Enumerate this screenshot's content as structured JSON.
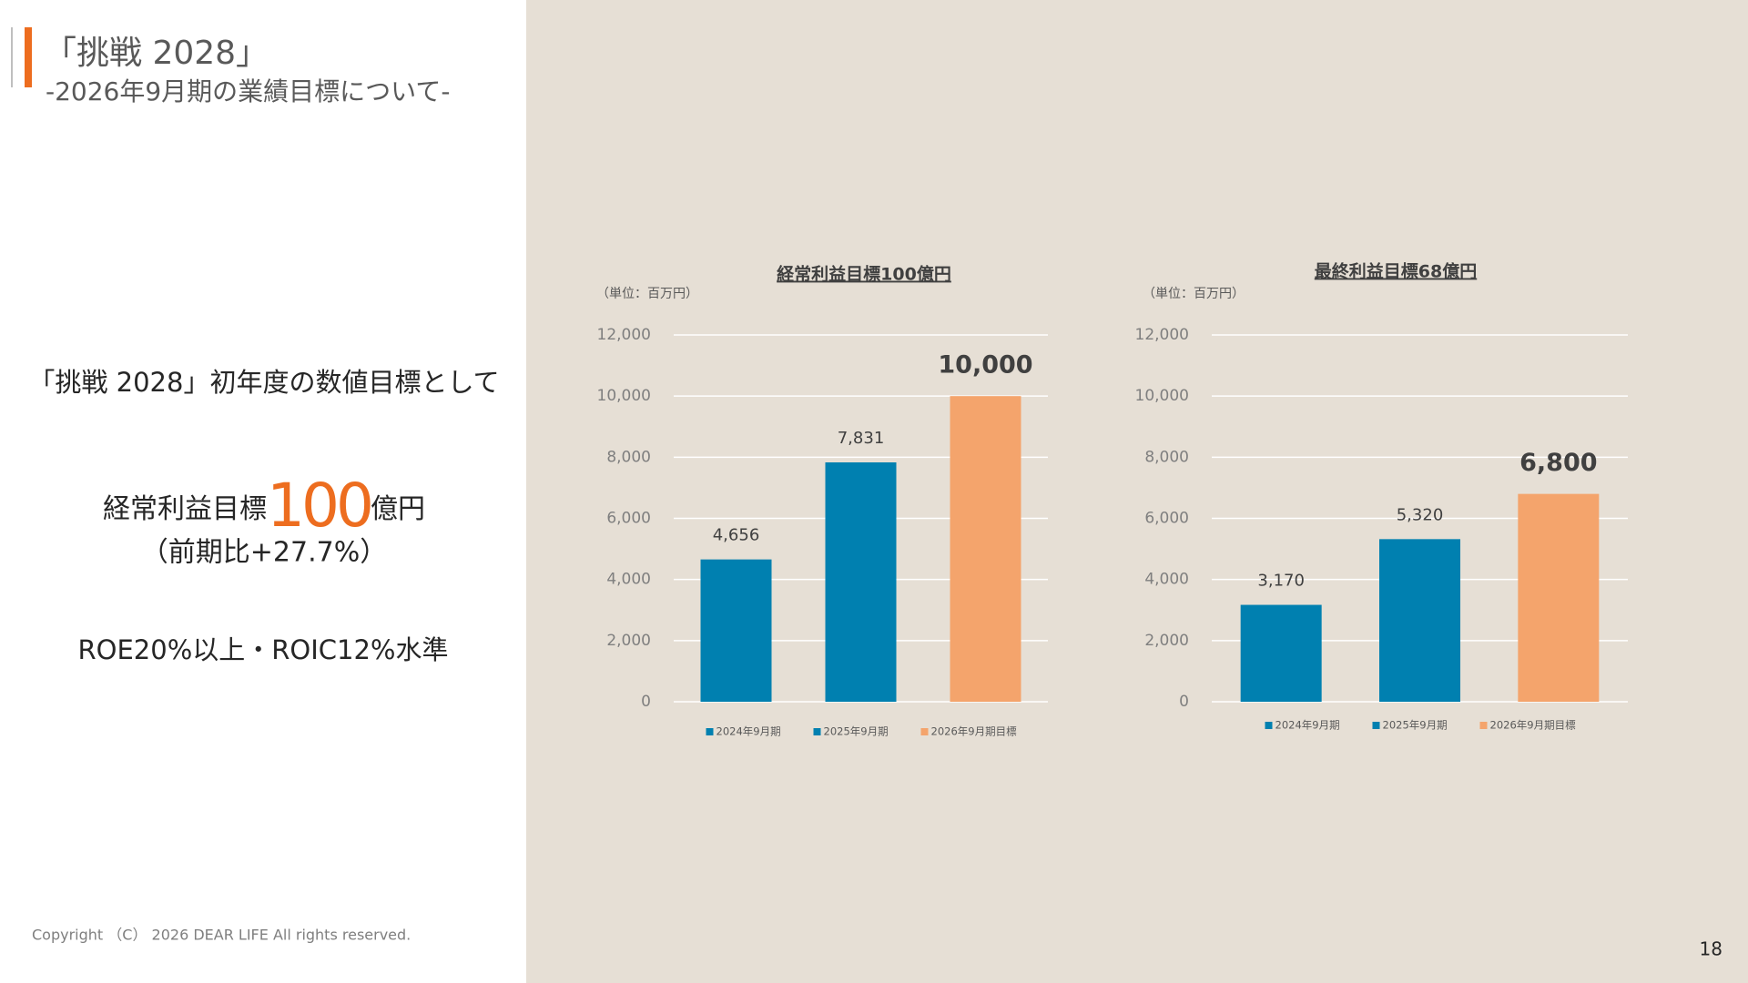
{
  "header": {
    "title": "「挑戦 2028」",
    "subtitle": "-2026年9月期の業績目標について-"
  },
  "summary": {
    "intro": "「挑戦 2028」初年度の数値目標として",
    "target_label": "経常利益目標",
    "target_value": "100",
    "target_unit": "億円",
    "comparison": "（前期比+27.7%）",
    "ratios": "ROE20%以上・ROIC12%水準"
  },
  "footer": {
    "copyright": "Copyright （C） 2026 DEAR LIFE All rights reserved.",
    "page": "18"
  },
  "chart_data": [
    {
      "type": "bar",
      "title": "経常利益目標100億円",
      "unit_label": "（単位：百万円）",
      "categories": [
        "2024年9月期",
        "2025年9月期",
        "2026年9月期目標"
      ],
      "values": [
        4656,
        7831,
        10000
      ],
      "value_labels": [
        "4,656",
        "7,831",
        "10,000"
      ],
      "colors": [
        "#0080b0",
        "#0080b0",
        "#f4a46c"
      ],
      "ylim": [
        0,
        12000
      ],
      "yticks": [
        0,
        {
          "value": 2000,
          "label": "2,000"
        },
        {
          "value": 4000,
          "label": "4,000"
        },
        {
          "value": 6000,
          "label": "6,000"
        },
        {
          "value": 8000,
          "label": "8,000"
        },
        {
          "value": 10000,
          "label": "10,000"
        },
        {
          "value": 12000,
          "label": "12,000"
        }
      ],
      "grid": true
    },
    {
      "type": "bar",
      "title": "最終利益目標68億円",
      "unit_label": "（単位：百万円）",
      "categories": [
        "2024年9月期",
        "2025年9月期",
        "2026年9月期目標"
      ],
      "values": [
        3170,
        5320,
        6800
      ],
      "value_labels": [
        "3,170",
        "5,320",
        "6,800"
      ],
      "colors": [
        "#0080b0",
        "#0080b0",
        "#f4a46c"
      ],
      "ylim": [
        0,
        12000
      ],
      "yticks": [
        0,
        {
          "value": 2000,
          "label": "2,000"
        },
        {
          "value": 4000,
          "label": "4,000"
        },
        {
          "value": 6000,
          "label": "6,000"
        },
        {
          "value": 8000,
          "label": "8,000"
        },
        {
          "value": 10000,
          "label": "10,000"
        },
        {
          "value": 12000,
          "label": "12,000"
        }
      ],
      "grid": true
    }
  ]
}
